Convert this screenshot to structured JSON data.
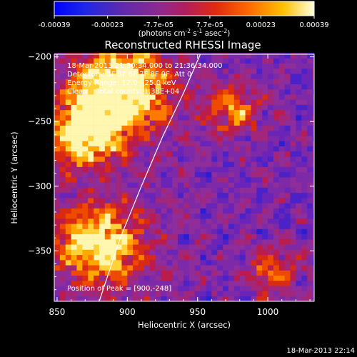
{
  "colorbar": {
    "tick_labels": [
      "-0.00039",
      "-0.00023",
      "-7.7e-05",
      "7.7e-05",
      "0.00023",
      "0.00039"
    ],
    "range": [
      -0.00039,
      0.00039
    ],
    "unit_label": "(photons cm",
    "unit_exp1": "-2",
    "unit_mid": " s",
    "unit_exp2": "-1",
    "unit_end": " asec",
    "unit_exp3": "-2",
    "unit_close": ")"
  },
  "chart_data": {
    "type": "heatmap",
    "title": "Reconstructed RHESSI Image",
    "xlabel": "Heliocentric X (arcsec)",
    "ylabel": "Heliocentric Y (arcsec)",
    "xlim": [
      848,
      1033
    ],
    "ylim": [
      -389,
      -198
    ],
    "x_ticks": [
      850,
      900,
      950,
      1000
    ],
    "y_ticks": [
      -200,
      -250,
      -300,
      -350
    ],
    "x_tick_labels": [
      "850",
      "900",
      "950",
      "1000"
    ],
    "y_tick_labels": [
      "−200",
      "−250",
      "−300",
      "−350"
    ],
    "limb_curve": [
      [
        880,
        -389
      ],
      [
        895,
        -340
      ],
      [
        910,
        -300
      ],
      [
        925,
        -262
      ],
      [
        940,
        -228
      ],
      [
        952,
        -198
      ]
    ],
    "bright_regions": [
      {
        "x": 895,
        "y": -225,
        "intensity": 1.0,
        "spread": 30
      },
      {
        "x": 870,
        "y": -260,
        "intensity": 0.75,
        "spread": 25
      },
      {
        "x": 880,
        "y": -345,
        "intensity": 0.8,
        "spread": 28
      },
      {
        "x": 975,
        "y": -240,
        "intensity": 0.45,
        "spread": 20
      },
      {
        "x": 1005,
        "y": -365,
        "intensity": 0.4,
        "spread": 18
      }
    ],
    "info_lines": [
      "18-Mar-2013 21:30:34.000 to 21:36:34.000",
      "Detectors: 3F 5F 6F 7F 8F 9F, Att 0",
      "Energy Range: 12.0 - 25.0 keV",
      "Clean    Total counts: 1.38E+04"
    ],
    "peak_label": "Position of Peak = [900,-248]",
    "peak": [
      900,
      -248
    ]
  },
  "footer": {
    "timestamp": "18-Mar-2013 22:14"
  }
}
